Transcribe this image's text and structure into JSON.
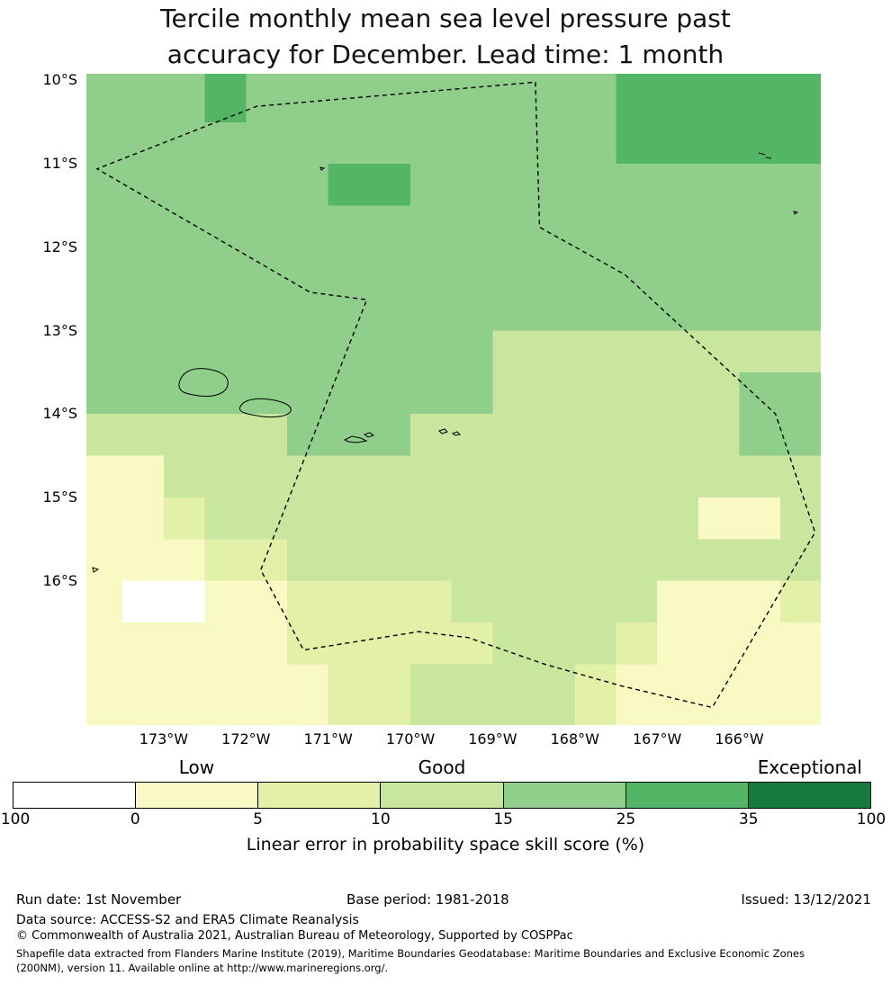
{
  "title": {
    "line1": "Tercile monthly mean sea level pressure past",
    "line2": "accuracy for December. Lead time: 1 month"
  },
  "chart_data": {
    "type": "heatmap",
    "title": "Tercile monthly mean sea level pressure past accuracy for December. Lead time: 1 month",
    "colorbar": {
      "caption": "Linear error in probability space skill score (%)",
      "bounds": [
        -100,
        0,
        5,
        10,
        15,
        25,
        35,
        100
      ],
      "colors": [
        "#ffffff",
        "#f9f9c4",
        "#e3f0a7",
        "#c8e69d",
        "#8fcf8b",
        "#55b567",
        "#17793d"
      ],
      "category_labels": [
        {
          "label": "Low",
          "segment_index": 1
        },
        {
          "label": "Good",
          "segment_index": 3
        },
        {
          "label": "Exceptional",
          "segment_index": 6
        }
      ]
    },
    "x_axis": {
      "ticks": [
        {
          "label": "173°W",
          "lon": 173
        },
        {
          "label": "172°W",
          "lon": 172
        },
        {
          "label": "171°W",
          "lon": 171
        },
        {
          "label": "170°W",
          "lon": 170
        },
        {
          "label": "169°W",
          "lon": 169
        },
        {
          "label": "168°W",
          "lon": 168
        },
        {
          "label": "167°W",
          "lon": 167
        },
        {
          "label": "166°W",
          "lon": 166
        }
      ]
    },
    "y_axis": {
      "ticks": [
        {
          "label": "10°S",
          "lat": 10
        },
        {
          "label": "11°S",
          "lat": 11
        },
        {
          "label": "12°S",
          "lat": 12
        },
        {
          "label": "13°S",
          "lat": 13
        },
        {
          "label": "14°S",
          "lat": 14
        },
        {
          "label": "15°S",
          "lat": 15
        },
        {
          "label": "16°S",
          "lat": 16
        }
      ]
    },
    "extent": {
      "lon_west": 173.94,
      "lon_east": 165.01,
      "lat_north": 9.92,
      "lat_south": 17.73
    },
    "grid": {
      "lon_edges_w": [
        173.94,
        173.5,
        173.0,
        172.5,
        172.0,
        171.5,
        171.0,
        170.5,
        170.0,
        169.5,
        169.0,
        168.5,
        168.0,
        167.5,
        167.0,
        166.5,
        166.0,
        165.5,
        165.01
      ],
      "lat_edges_s": [
        9.92,
        10.5,
        11.0,
        11.5,
        12.0,
        12.5,
        13.0,
        13.5,
        14.0,
        14.5,
        15.0,
        15.5,
        16.0,
        16.5,
        17.0,
        17.5,
        17.73
      ],
      "values": [
        [
          20,
          20,
          20,
          30,
          20,
          20,
          20,
          20,
          20,
          20,
          20,
          20,
          20,
          30,
          30,
          30,
          30,
          30
        ],
        [
          20,
          20,
          20,
          20,
          20,
          20,
          20,
          20,
          20,
          20,
          20,
          20,
          20,
          30,
          30,
          30,
          30,
          30
        ],
        [
          20,
          20,
          20,
          20,
          20,
          20,
          30,
          30,
          20,
          20,
          20,
          20,
          20,
          20,
          20,
          20,
          20,
          20
        ],
        [
          20,
          20,
          20,
          20,
          20,
          20,
          20,
          20,
          20,
          20,
          20,
          20,
          20,
          20,
          20,
          20,
          20,
          20
        ],
        [
          20,
          20,
          20,
          20,
          20,
          20,
          20,
          20,
          20,
          20,
          20,
          20,
          20,
          20,
          20,
          20,
          20,
          20
        ],
        [
          20,
          20,
          20,
          20,
          20,
          20,
          20,
          20,
          20,
          20,
          20,
          20,
          20,
          20,
          20,
          20,
          20,
          20
        ],
        [
          20,
          20,
          20,
          20,
          20,
          20,
          20,
          20,
          20,
          20,
          12,
          12,
          12,
          12,
          12,
          12,
          12,
          12
        ],
        [
          20,
          20,
          20,
          20,
          20,
          20,
          20,
          20,
          20,
          20,
          12,
          12,
          12,
          12,
          12,
          12,
          20,
          20
        ],
        [
          12,
          12,
          12,
          12,
          12,
          20,
          20,
          20,
          12,
          12,
          12,
          12,
          12,
          12,
          12,
          12,
          20,
          20
        ],
        [
          2,
          2,
          12,
          12,
          12,
          12,
          12,
          12,
          12,
          12,
          12,
          12,
          12,
          12,
          12,
          12,
          12,
          12
        ],
        [
          2,
          2,
          7,
          12,
          12,
          12,
          12,
          12,
          12,
          12,
          12,
          12,
          12,
          12,
          12,
          2,
          2,
          12
        ],
        [
          2,
          2,
          2,
          7,
          7,
          12,
          12,
          12,
          12,
          12,
          12,
          12,
          12,
          12,
          12,
          12,
          12,
          12
        ],
        [
          2,
          -5,
          -5,
          2,
          2,
          7,
          7,
          7,
          7,
          12,
          12,
          12,
          12,
          12,
          2,
          2,
          2,
          7
        ],
        [
          2,
          2,
          2,
          2,
          2,
          7,
          7,
          7,
          7,
          7,
          12,
          12,
          12,
          7,
          2,
          2,
          2,
          2
        ],
        [
          2,
          2,
          2,
          2,
          2,
          2,
          7,
          7,
          12,
          12,
          12,
          12,
          7,
          2,
          2,
          2,
          2,
          2
        ],
        [
          2,
          2,
          2,
          2,
          2,
          2,
          7,
          7,
          12,
          12,
          12,
          12,
          7,
          2,
          2,
          2,
          2,
          2
        ]
      ]
    },
    "eez_boundary": [
      [
        168.48,
        10.02
      ],
      [
        168.43,
        11.76
      ],
      [
        167.39,
        12.33
      ],
      [
        165.56,
        14.0
      ],
      [
        165.08,
        15.42
      ],
      [
        166.33,
        17.52
      ],
      [
        167.44,
        17.26
      ],
      [
        168.37,
        17.0
      ],
      [
        169.3,
        16.68
      ],
      [
        169.9,
        16.61
      ],
      [
        171.3,
        16.83
      ],
      [
        171.82,
        15.87
      ],
      [
        170.53,
        12.63
      ],
      [
        171.22,
        12.54
      ],
      [
        173.81,
        11.06
      ],
      [
        171.87,
        10.31
      ]
    ],
    "islands": [
      "M103,345 C105,332 117,326 133,328 C149,330 159,336 157,346 C155,356 141,360 125,358 C111,356 102,354 103,345 Z",
      "M171,370 C175,362 189,360 203,362 C217,364 229,368 227,375 C223,382 205,383 189,380 C177,378 168,376 171,370 Z",
      "M287,407 l8,-4 l10,2 l6,3 l-10,2 l-10,-1 Z",
      "M309,401 l6,-2 l4,3 l-6,2 Z",
      "M392,397 l6,-2 l3,3 l-6,2 Z",
      "M407,400 l5,-2 l3,3 l-5,1 Z",
      "M747,88 l7,2 M755,93 l6,1",
      "M7,549 l6,2 l-5,3 Z",
      "M260,104 l4,1 l-3,2 Z",
      "M786,153 l4,1 l-3,2 Z"
    ]
  },
  "footer": {
    "run_date": "Run date: 1st November",
    "base_period": "Base period: 1981-2018",
    "issued": "Issued: 13/12/2021",
    "data_source": "Data source: ACCESS-S2 and ERA5 Climate Reanalysis",
    "copyright": "© Commonwealth of Australia 2021, Australian Bureau of Meteorology, Supported by COSPPac",
    "shapefile_line1": "Shapefile data extracted from Flanders Marine Institute (2019), Maritime Boundaries Geodatabase: Maritime Boundaries and Exclusive Economic Zones",
    "shapefile_line2": "(200NM), version 11. Available online at http://www.marineregions.org/."
  }
}
